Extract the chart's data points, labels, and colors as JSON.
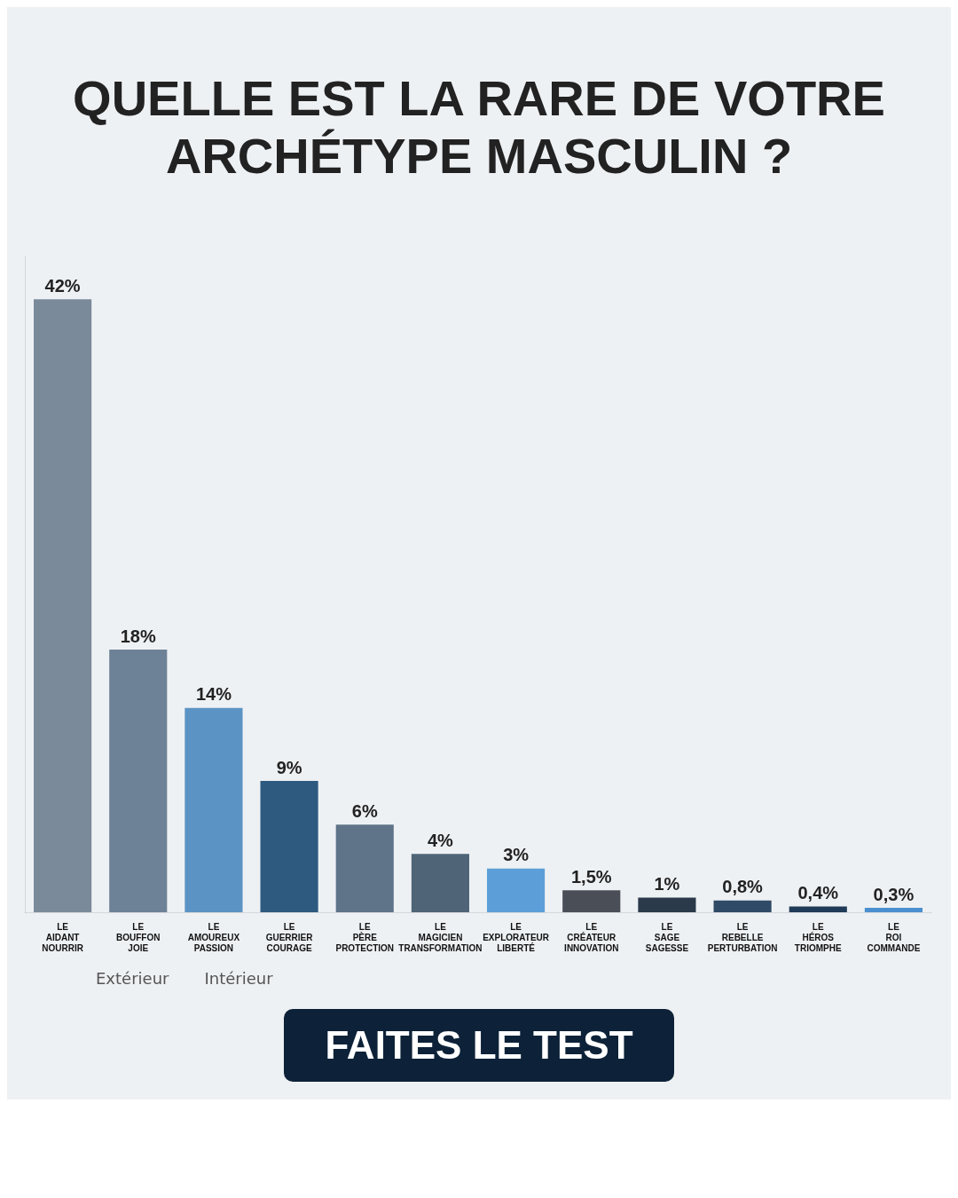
{
  "chart_data": {
    "type": "bar",
    "title": "QUELLE EST LA RARE DE VOTRE ARCHÉTYPE MASCULIN ?",
    "categories": [
      "LE\nAIDANT\nNOURRIR",
      "LE\nBOUFFON\nJOIE",
      "LE\nAMOUREUX\nPASSION",
      "LE\nGUERRIER\nCOURAGE",
      "LE\nPÈRE\nPROTECTION",
      "LE\nMAGICIEN\nTRANSFORMATION",
      "LE\nEXPLORATEUR\nLIBERTÉ",
      "LE\nCRÉATEUR\nINNOVATION",
      "LE\nSAGE\nSAGESSE",
      "LE\nREBELLE\nPERTURBATION",
      "LE\nHÉROS\nTRIOMPHE",
      "LE\nROI\nCOMMANDE"
    ],
    "values": [
      42,
      18,
      14,
      9,
      6,
      4,
      3,
      1.5,
      1,
      0.8,
      0.4,
      0.3
    ],
    "colors": [
      "#7a8a9a",
      "#6d8296",
      "#5b93c4",
      "#2e5a80",
      "#5f7488",
      "#4f6477",
      "#5c9fd8",
      "#4a4f57",
      "#2b3a4a",
      "#2f4a66",
      "#1f3b57",
      "#4a90d0"
    ],
    "value_labels": [
      "42%",
      "18%",
      "14%",
      "9%",
      "6%",
      "4%",
      "3%",
      "1,5%",
      "1%",
      "0,8%",
      "0,4%",
      "0,3%"
    ],
    "tick_labels": "x",
    "grid": false,
    "legend": false,
    "annotations": [
      "Extérieur",
      "Intérieur",
      "FAITES LE TEST"
    ]
  }
}
